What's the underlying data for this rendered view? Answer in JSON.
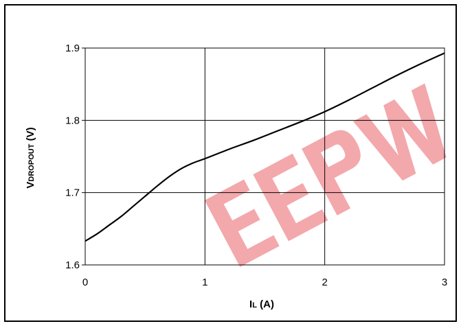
{
  "chart_data": {
    "type": "line",
    "xlabel": {
      "main": "I",
      "sub": "L",
      "unit": " (A)"
    },
    "ylabel": {
      "main": "V",
      "sub": "DROPOUT",
      "unit": " (V)"
    },
    "xlim": [
      0,
      3
    ],
    "ylim": [
      1.6,
      1.9
    ],
    "x_ticks": [
      "0",
      "1",
      "2",
      "3"
    ],
    "y_ticks": [
      "1.6",
      "1.7",
      "1.8",
      "1.9"
    ],
    "grid": true,
    "series": [
      {
        "x": [
          0,
          0.1,
          0.2,
          0.3,
          0.4,
          0.5,
          0.6,
          0.7,
          0.8,
          0.9,
          1.0,
          1.2,
          1.4,
          1.6,
          1.8,
          2.0,
          2.2,
          2.4,
          2.6,
          2.8,
          3.0
        ],
        "y": [
          1.633,
          1.643,
          1.655,
          1.667,
          1.681,
          1.695,
          1.709,
          1.722,
          1.733,
          1.741,
          1.747,
          1.76,
          1.772,
          1.785,
          1.798,
          1.812,
          1.828,
          1.845,
          1.862,
          1.878,
          1.893
        ]
      }
    ],
    "colors": {
      "line": "#000000",
      "grid": "#000000",
      "watermark": "#e8545c"
    }
  }
}
